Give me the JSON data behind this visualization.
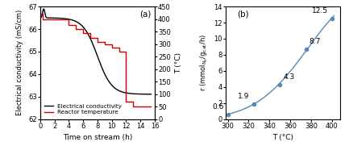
{
  "panel_a": {
    "title": "(a)",
    "xlabel": "Time on stream (h)",
    "ylabel_left": "Electrical conductivity (mS/cm)",
    "ylabel_right": "T (°C)",
    "xlim": [
      0,
      16
    ],
    "ylim_left": [
      62,
      67
    ],
    "ylim_right": [
      0,
      450
    ],
    "yticks_left": [
      62,
      63,
      64,
      65,
      66,
      67
    ],
    "yticks_right": [
      0,
      50,
      100,
      150,
      200,
      250,
      300,
      350,
      400,
      450
    ],
    "xticks": [
      0,
      2,
      4,
      6,
      8,
      10,
      12,
      14,
      16
    ],
    "legend_entries": [
      "Electrical conductivity",
      "Reactor temperature"
    ],
    "line_color_black": "#000000",
    "line_color_red": "#cc0000",
    "ec_start": 66.5,
    "ec_peak": 66.9,
    "ec_peak_t": 0.5,
    "ec_end": 63.1,
    "ec_inflection": 8.0,
    "ec_steepness": 1.0,
    "red_t": [
      0,
      0.4,
      0.4,
      4.0,
      4.0,
      5.0,
      5.0,
      6.0,
      6.0,
      7.0,
      7.0,
      8.0,
      8.0,
      9.0,
      9.0,
      10.0,
      10.0,
      11.0,
      11.0,
      12.0,
      12.0,
      13.0,
      13.0,
      15.5
    ],
    "red_T": [
      420,
      420,
      400,
      400,
      375,
      375,
      360,
      360,
      345,
      345,
      325,
      325,
      310,
      310,
      300,
      300,
      285,
      285,
      270,
      270,
      70,
      70,
      50,
      50
    ]
  },
  "panel_b": {
    "title": "(b)",
    "xlabel": "T (°C)",
    "xlim": [
      298,
      408
    ],
    "ylim": [
      0,
      14
    ],
    "xticks": [
      300,
      320,
      340,
      360,
      380,
      400
    ],
    "yticks": [
      0,
      2,
      4,
      6,
      8,
      10,
      12,
      14
    ],
    "data_x": [
      300,
      325,
      350,
      375,
      400
    ],
    "data_y": [
      0.6,
      1.9,
      4.3,
      8.7,
      12.5
    ],
    "data_labels": [
      "0.6",
      "1.9",
      "4.3",
      "8.7",
      "12.5"
    ],
    "line_color": "#5588bb",
    "marker_color": "#5588bb",
    "marker_style": "o",
    "marker_size": 4
  }
}
